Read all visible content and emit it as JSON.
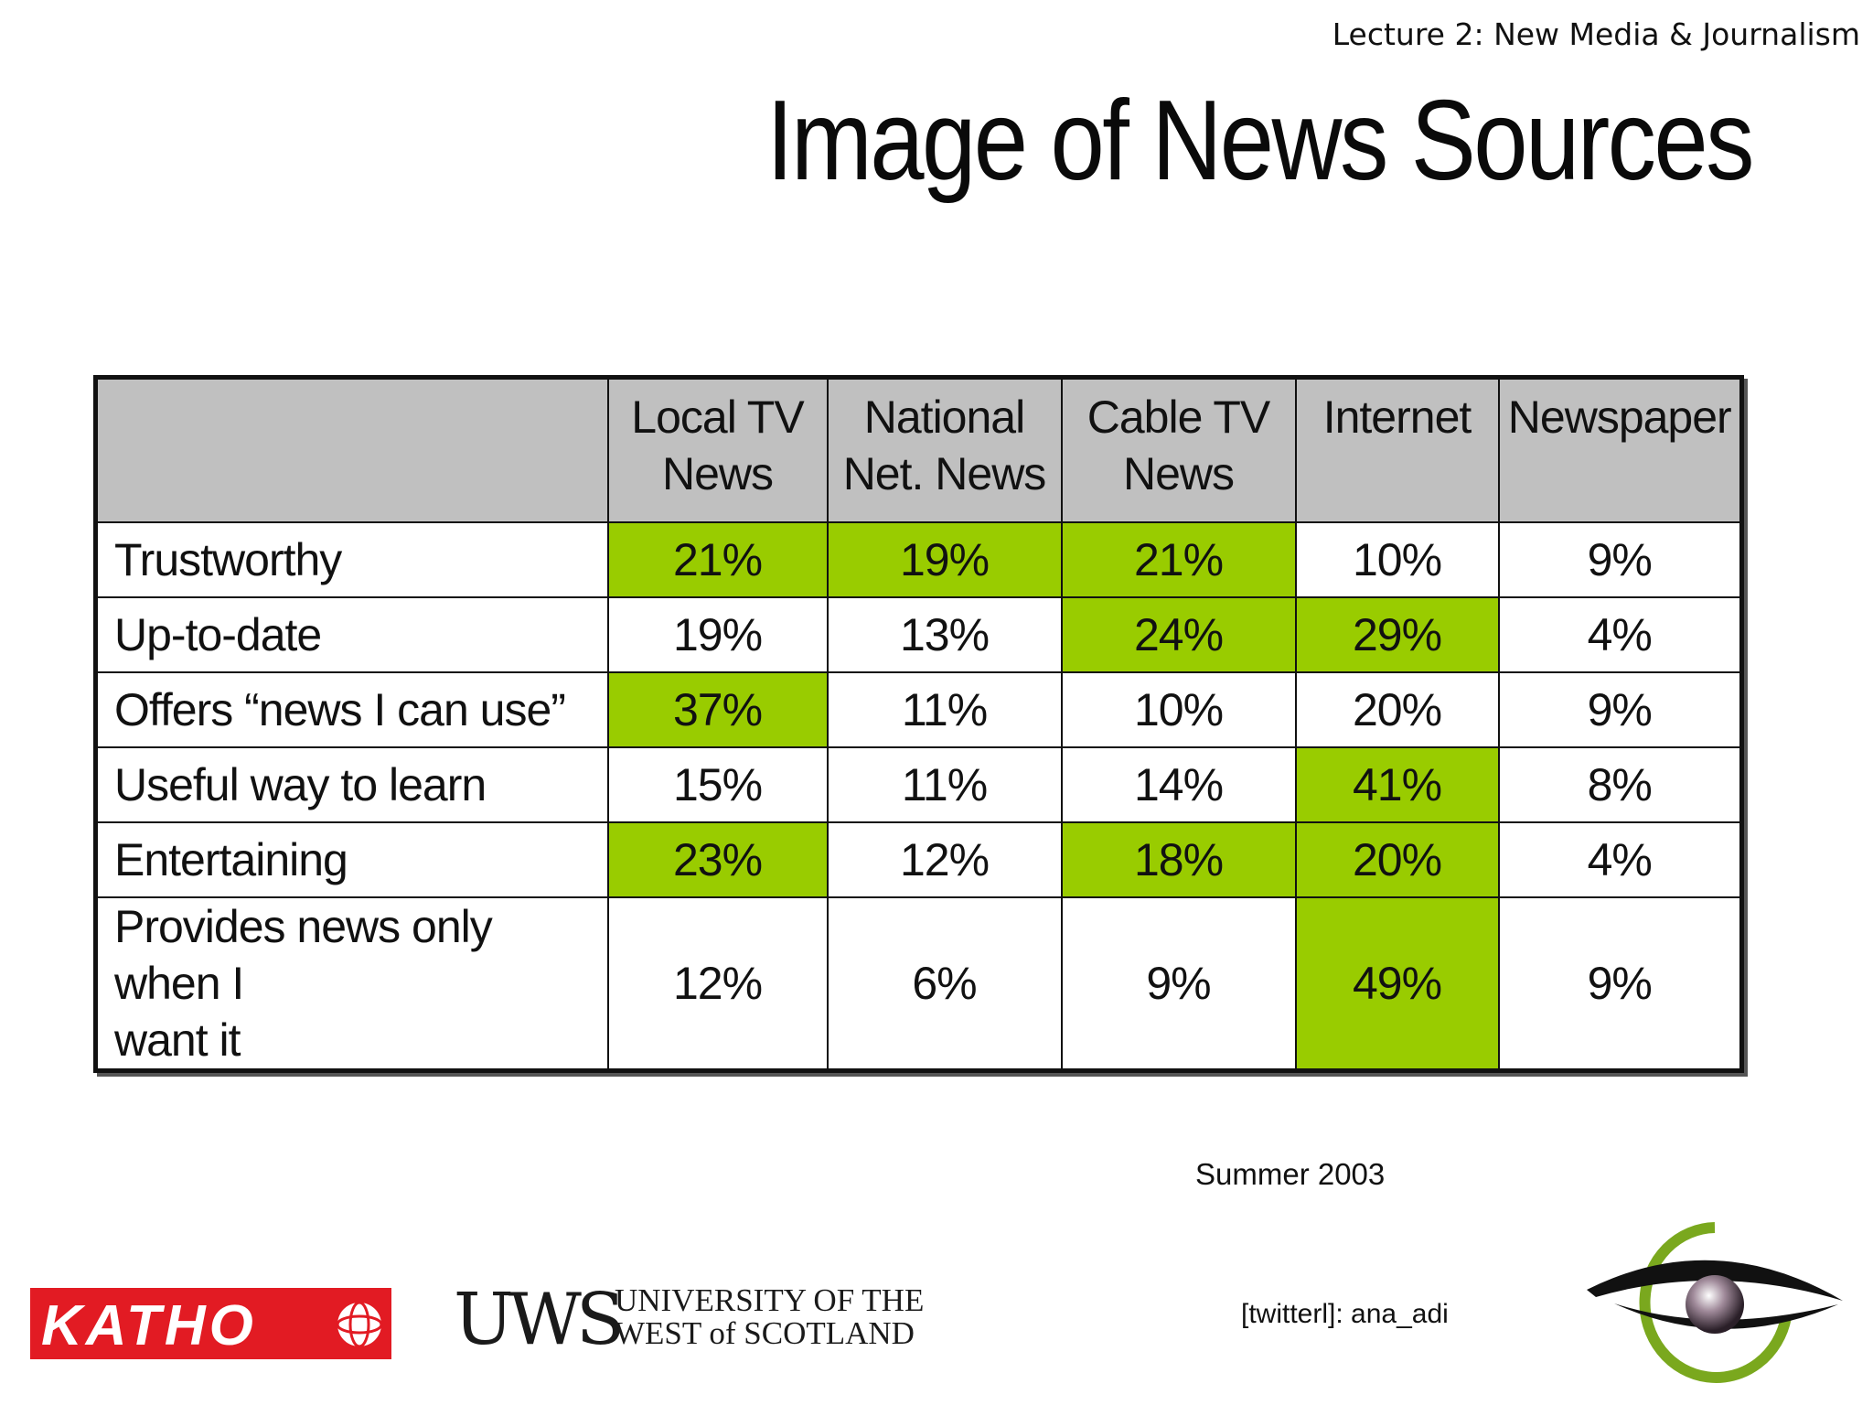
{
  "header": {
    "lecture": "Lecture 2: New Media & Journalism",
    "title": "Image of News Sources"
  },
  "table": {
    "columns": [
      "",
      "Local TV News",
      "National Net. News",
      "Cable TV News",
      "Internet",
      "Newspaper"
    ],
    "column_lines": [
      [],
      [
        "Local TV",
        "News"
      ],
      [
        "National",
        "Net. News"
      ],
      [
        "Cable TV",
        "News"
      ],
      [
        "Internet"
      ],
      [
        "Newspaper"
      ]
    ],
    "rows": [
      {
        "label": "Trustworthy",
        "cells": [
          "21%",
          "19%",
          "21%",
          "10%",
          "9%"
        ],
        "highlight": [
          true,
          true,
          true,
          false,
          false
        ]
      },
      {
        "label": "Up-to-date",
        "cells": [
          "19%",
          "13%",
          "24%",
          "29%",
          "4%"
        ],
        "highlight": [
          false,
          false,
          true,
          true,
          false
        ]
      },
      {
        "label": "Offers “news I can use”",
        "cells": [
          "37%",
          "11%",
          "10%",
          "20%",
          "9%"
        ],
        "highlight": [
          true,
          false,
          false,
          false,
          false
        ]
      },
      {
        "label": "Useful way to learn",
        "cells": [
          "15%",
          "11%",
          "14%",
          "41%",
          "8%"
        ],
        "highlight": [
          false,
          false,
          false,
          true,
          false
        ]
      },
      {
        "label": "Entertaining",
        "cells": [
          "23%",
          "12%",
          "18%",
          "20%",
          "4%"
        ],
        "highlight": [
          true,
          false,
          true,
          true,
          false
        ]
      },
      {
        "label": "Provides news only when I want it",
        "label_lines": [
          "Provides news only when I",
          "want it"
        ],
        "cells": [
          "12%",
          "6%",
          "9%",
          "49%",
          "9%"
        ],
        "highlight": [
          false,
          false,
          false,
          true,
          false
        ]
      }
    ],
    "highlight_color": "#99cc00",
    "header_bg": "#c0c0c0"
  },
  "footer": {
    "date": "Summer 2003",
    "twitter": "[twitterl]: ana_adi",
    "logo_katho": "KATHO",
    "logo_uws_abbr": "UWS",
    "logo_uws_line1": "UNIVERSITY OF THE",
    "logo_uws_line2": "WEST of SCOTLAND"
  },
  "colors": {
    "katho_red": "#e21b23",
    "eye_green": "#7aa81e"
  }
}
